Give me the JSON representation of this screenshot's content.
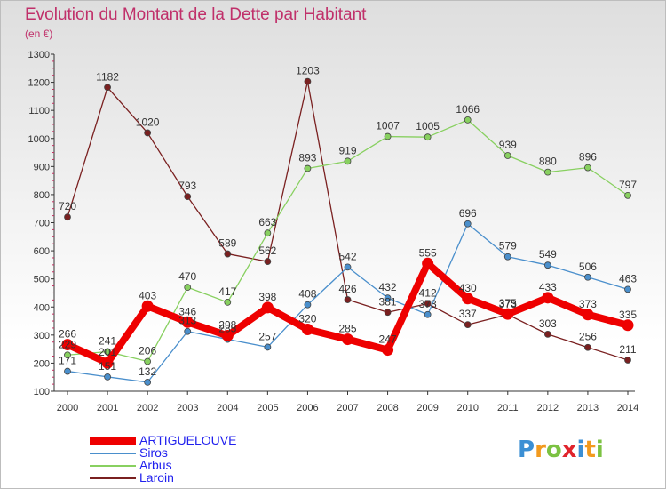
{
  "title": "Evolution du Montant de la Dette par Habitant",
  "subtitle": "(en €)",
  "logo": {
    "letters": [
      "P",
      "r",
      "o",
      "x",
      "i",
      "t",
      "i"
    ],
    "colors": [
      "#3b8fd4",
      "#f29a1e",
      "#7cc242",
      "#e0242c",
      "#3b8fd4",
      "#f29a1e",
      "#7cc242"
    ]
  },
  "chart_data": {
    "type": "line",
    "x": [
      "2000",
      "2001",
      "2002",
      "2003",
      "2004",
      "2005",
      "2006",
      "2007",
      "2008",
      "2009",
      "2010",
      "2011",
      "2012",
      "2013",
      "2014"
    ],
    "ylim": [
      100,
      1300
    ],
    "yticks": [
      "100",
      "200",
      "300",
      "400",
      "500",
      "600",
      "700",
      "800",
      "900",
      "1000",
      "1100",
      "1200",
      "1300"
    ],
    "grid": false,
    "legend_position": "bottom-left",
    "series": [
      {
        "name": "ARTIGUELOUVE",
        "color": "#ee0000",
        "values": [
          266,
          201,
          403,
          346,
          298,
          398,
          320,
          285,
          247,
          555,
          430,
          375,
          433,
          373,
          335
        ],
        "labels": [
          "266",
          "201",
          "403",
          "346",
          "298",
          "398",
          "320",
          "285",
          "247",
          "555",
          "430",
          "375",
          "433",
          "373",
          "335"
        ]
      },
      {
        "name": "Siros",
        "color": "#4a8fcc",
        "values": [
          171,
          151,
          132,
          313,
          285,
          257,
          408,
          542,
          432,
          373,
          696,
          579,
          549,
          506,
          463
        ],
        "labels": [
          "171",
          "151",
          "132",
          "313",
          "285",
          "257",
          "408",
          "542",
          "432",
          "373",
          "696",
          "579",
          "549",
          "506",
          "463"
        ]
      },
      {
        "name": "Arbus",
        "color": "#88d060",
        "values": [
          229,
          241,
          206,
          470,
          417,
          663,
          893,
          919,
          1007,
          1005,
          1066,
          939,
          880,
          896,
          797
        ],
        "labels": [
          "229",
          "241",
          "206",
          "470",
          "417",
          "663",
          "893",
          "919",
          "1007",
          "1005",
          "1066",
          "939",
          "880",
          "896",
          "797"
        ]
      },
      {
        "name": "Laroin",
        "color": "#7a2020",
        "values": [
          720,
          1182,
          1020,
          793,
          589,
          562,
          1203,
          426,
          381,
          412,
          337,
          373,
          303,
          256,
          211
        ],
        "labels": [
          "720",
          "1182",
          "1020",
          "793",
          "589",
          "562",
          "1203",
          "426",
          "381",
          "412",
          "337",
          "373",
          "303",
          "256",
          "211"
        ]
      }
    ]
  }
}
